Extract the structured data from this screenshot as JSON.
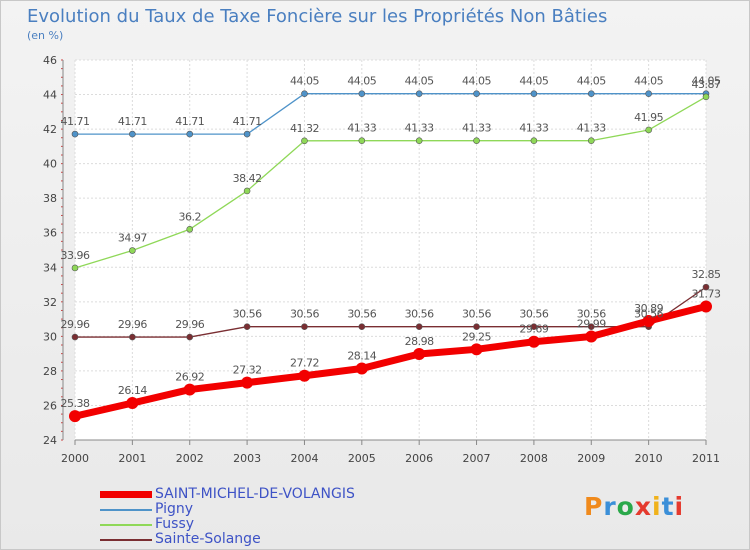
{
  "title": "Evolution du Taux de Taxe Foncière sur les Propriétés Non Bâties",
  "subtitle": "(en %)",
  "logo": "Proxiti",
  "chart_data": {
    "type": "line",
    "x": [
      "2000",
      "2001",
      "2002",
      "2003",
      "2004",
      "2005",
      "2006",
      "2007",
      "2008",
      "2009",
      "2010",
      "2011"
    ],
    "ylim": [
      24,
      46
    ],
    "yticks": [
      24,
      26,
      28,
      30,
      32,
      34,
      36,
      38,
      40,
      42,
      44,
      46
    ],
    "grid": true,
    "legend_position": "bottom",
    "series": [
      {
        "name": "SAINT-MICHEL-DE-VOLANGIS",
        "color": "#f20000",
        "values": [
          25.38,
          26.14,
          26.92,
          27.32,
          27.72,
          28.14,
          28.98,
          29.25,
          29.69,
          29.99,
          30.89,
          31.73
        ],
        "labels": [
          "25.38",
          "26.14",
          "26.92",
          "27.32",
          "27.72",
          "28.14",
          "28.98",
          "29.25",
          "29.69",
          "29.99",
          "30.89",
          "31.73"
        ]
      },
      {
        "name": "Pigny",
        "color": "#4f93c9",
        "values": [
          41.71,
          41.71,
          41.71,
          41.71,
          44.05,
          44.05,
          44.05,
          44.05,
          44.05,
          44.05,
          44.05,
          44.05
        ],
        "labels": [
          "41.71",
          "41.71",
          "41.71",
          "41.71",
          "44.05",
          "44.05",
          "44.05",
          "44.05",
          "44.05",
          "44.05",
          "44.05",
          "44.05"
        ]
      },
      {
        "name": "Fussy",
        "color": "#8fd858",
        "values": [
          33.96,
          34.97,
          36.2,
          38.42,
          41.32,
          41.33,
          41.33,
          41.33,
          41.33,
          41.33,
          41.95,
          43.87
        ],
        "labels": [
          "33.96",
          "34.97",
          "36.2",
          "38.42",
          "41.32",
          "41.33",
          "41.33",
          "41.33",
          "41.33",
          "41.33",
          "41.95",
          "43.87"
        ]
      },
      {
        "name": "Sainte-Solange",
        "color": "#7a2e32",
        "values": [
          29.96,
          29.96,
          29.96,
          30.56,
          30.56,
          30.56,
          30.56,
          30.56,
          30.56,
          30.56,
          30.56,
          32.85
        ],
        "labels": [
          "29.96",
          "29.96",
          "29.96",
          "30.56",
          "30.56",
          "30.56",
          "30.56",
          "30.56",
          "30.56",
          "30.56",
          "30.56",
          "32.85"
        ]
      }
    ]
  }
}
